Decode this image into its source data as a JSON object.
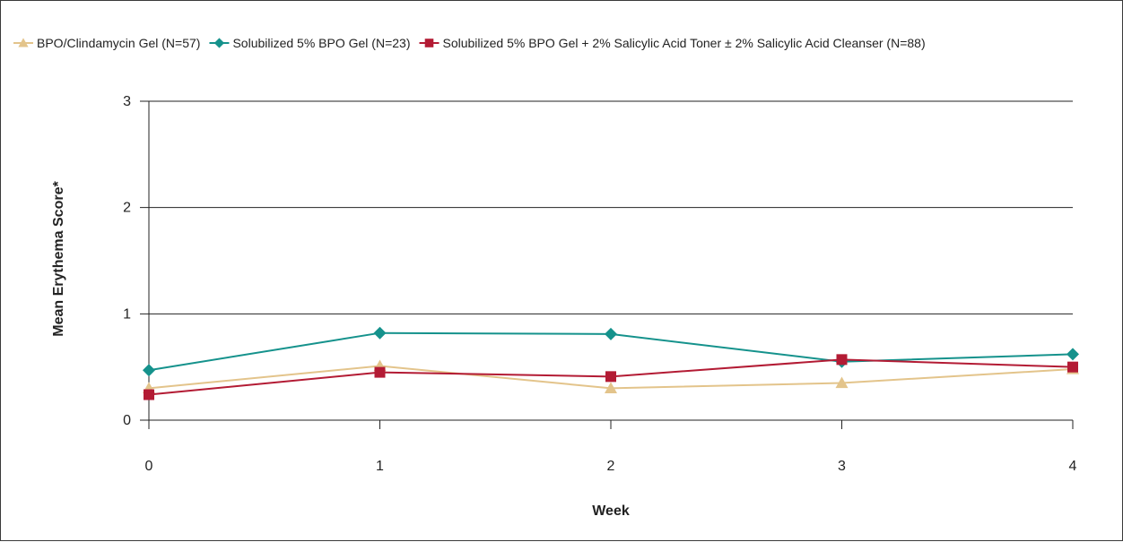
{
  "chart_data": {
    "type": "line",
    "xlabel": "Week",
    "ylabel": "Mean Erythema Score*",
    "x": [
      0,
      1,
      2,
      3,
      4
    ],
    "xticks": [
      "0",
      "1",
      "2",
      "3",
      "4"
    ],
    "yticks": [
      "0",
      "1",
      "2",
      "3"
    ],
    "ylim": [
      0,
      3
    ],
    "grid": "horizontal",
    "legend_position": "top",
    "series": [
      {
        "name": "BPO/Clindamycin Gel (N=57)",
        "values": [
          0.3,
          0.51,
          0.3,
          0.35,
          0.48
        ],
        "color": "#e3c48b",
        "marker": "triangle"
      },
      {
        "name": "Solubilized 5% BPO Gel (N=23)",
        "values": [
          0.47,
          0.82,
          0.81,
          0.55,
          0.62
        ],
        "color": "#15928c",
        "marker": "diamond"
      },
      {
        "name": "Solubilized 5% BPO Gel + 2% Salicylic Acid Toner ± 2% Salicylic Acid Cleanser (N=88)",
        "values": [
          0.24,
          0.45,
          0.41,
          0.57,
          0.5
        ],
        "color": "#b31b34",
        "marker": "square"
      }
    ]
  }
}
